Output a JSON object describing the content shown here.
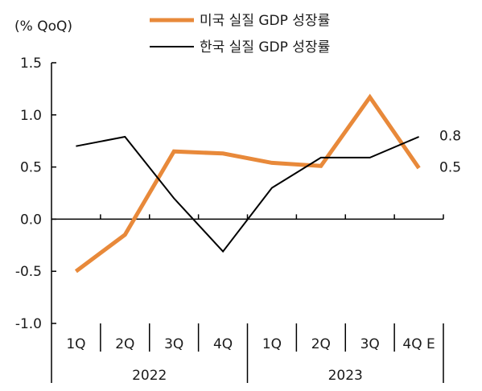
{
  "chart_data": {
    "type": "line",
    "unit_label": "(% QoQ)",
    "title": "",
    "xlabel": "",
    "ylabel": "",
    "ylim": [
      -1.0,
      1.5
    ],
    "yticks": [
      "1.5",
      "1.0",
      "0.5",
      "0.0",
      "-0.5",
      "-1.0"
    ],
    "ytick_values": [
      1.5,
      1.0,
      0.5,
      0.0,
      -0.5,
      -1.0
    ],
    "categories": [
      "1Q",
      "2Q",
      "3Q",
      "4Q",
      "1Q",
      "2Q",
      "3Q",
      "4Q E"
    ],
    "year_groups": [
      {
        "label": "2022",
        "span": [
          0,
          3
        ]
      },
      {
        "label": "2023",
        "span": [
          4,
          7
        ]
      }
    ],
    "series": [
      {
        "name": "미국 실질 GDP 성장률",
        "color": "#E8893A",
        "values": [
          -0.5,
          -0.15,
          0.65,
          0.63,
          0.54,
          0.51,
          1.17,
          0.49
        ]
      },
      {
        "name": "한국 실질 GDP 성장률",
        "color": "#000000",
        "values": [
          0.7,
          0.79,
          0.2,
          -0.31,
          0.3,
          0.59,
          0.59,
          0.79
        ]
      }
    ],
    "end_labels": [
      {
        "series": 1,
        "text": "0.8",
        "value": 0.8
      },
      {
        "series": 0,
        "text": "0.5",
        "value": 0.5
      }
    ],
    "legend_position": "top-center",
    "grid": false
  }
}
